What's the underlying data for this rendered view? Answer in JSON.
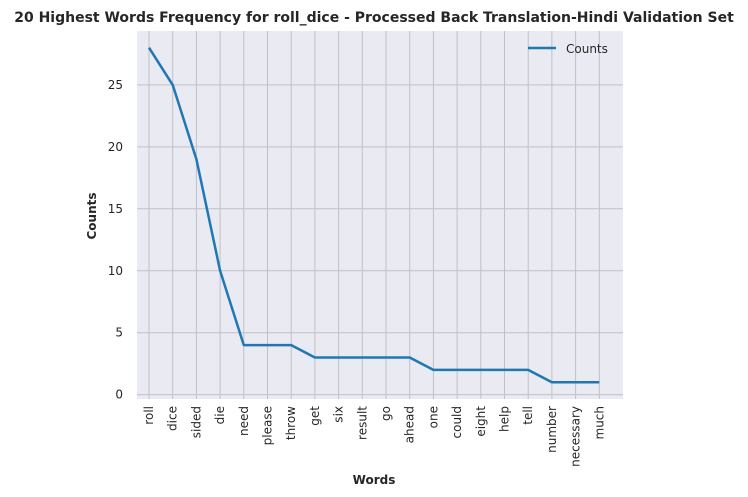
{
  "chart_data": {
    "type": "line",
    "title": "20 Highest Words Frequency for roll_dice - Processed Back Translation-Hindi Validation Set",
    "xlabel": "Words",
    "ylabel": "Counts",
    "categories": [
      "roll",
      "dice",
      "sided",
      "die",
      "need",
      "please",
      "throw",
      "get",
      "six",
      "result",
      "go",
      "ahead",
      "one",
      "could",
      "eight",
      "help",
      "tell",
      "number",
      "necessary",
      "much"
    ],
    "series": [
      {
        "name": "Counts",
        "values": [
          28,
          25,
          19,
          10,
          4,
          4,
          4,
          3,
          3,
          3,
          3,
          3,
          2,
          2,
          2,
          2,
          2,
          1,
          1,
          1
        ],
        "color": "#1f77b4"
      }
    ],
    "yticks": [
      0,
      5,
      10,
      15,
      20,
      25
    ],
    "ylim": [
      -0.35,
      29.35
    ],
    "grid": true,
    "legend_position": "top-right",
    "background_color": "#eaeaf2",
    "grid_color": "#c0c0c8"
  }
}
